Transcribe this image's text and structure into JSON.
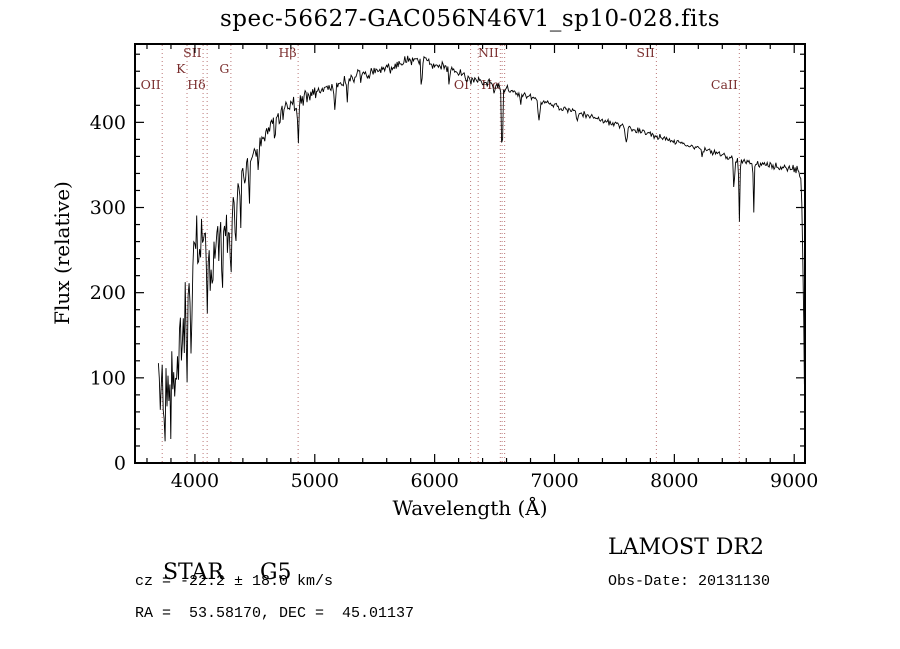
{
  "chart_data": {
    "type": "line",
    "title": "spec-56627-GAC056N46V1_sp10-028.fits",
    "xlabel": "Wavelength (Å)",
    "ylabel": "Flux (relative)",
    "xlim": [
      3500,
      9090
    ],
    "ylim": [
      0,
      492
    ],
    "x_ticks": [
      4000,
      5000,
      6000,
      7000,
      8000,
      9000
    ],
    "y_ticks": [
      0,
      100,
      200,
      300,
      400
    ],
    "x_major_step": 1000,
    "x_minor_step": 200,
    "y_major_step": 100,
    "y_minor_step": 20,
    "grid": false,
    "legend": "none",
    "line_color": "#000000",
    "marker_line_color": "#bb7777",
    "marker_label_color": "#7a2e2e",
    "seed": 42,
    "sample_step": 8,
    "wl_start": 3695,
    "wl_end": 9085,
    "series": [
      {
        "name": "spectrum",
        "continuum": [
          [
            3695,
            115
          ],
          [
            3720,
            125
          ],
          [
            3745,
            120
          ],
          [
            3770,
            135
          ],
          [
            3800,
            125
          ],
          [
            3830,
            140
          ],
          [
            3860,
            150
          ],
          [
            3900,
            185
          ],
          [
            3930,
            195
          ],
          [
            3960,
            205
          ],
          [
            3990,
            255
          ],
          [
            4020,
            265
          ],
          [
            4060,
            268
          ],
          [
            4100,
            265
          ],
          [
            4140,
            245
          ],
          [
            4180,
            255
          ],
          [
            4220,
            268
          ],
          [
            4260,
            285
          ],
          [
            4300,
            310
          ],
          [
            4340,
            325
          ],
          [
            4380,
            335
          ],
          [
            4420,
            345
          ],
          [
            4460,
            352
          ],
          [
            4500,
            360
          ],
          [
            4560,
            375
          ],
          [
            4620,
            392
          ],
          [
            4680,
            405
          ],
          [
            4740,
            415
          ],
          [
            4800,
            422
          ],
          [
            4861,
            424
          ],
          [
            4920,
            430
          ],
          [
            4980,
            434
          ],
          [
            5050,
            438
          ],
          [
            5150,
            443
          ],
          [
            5250,
            448
          ],
          [
            5350,
            452
          ],
          [
            5450,
            457
          ],
          [
            5550,
            461
          ],
          [
            5650,
            466
          ],
          [
            5750,
            470
          ],
          [
            5850,
            473
          ],
          [
            5950,
            472
          ],
          [
            6050,
            466
          ],
          [
            6150,
            460
          ],
          [
            6250,
            455
          ],
          [
            6350,
            450
          ],
          [
            6450,
            446
          ],
          [
            6563,
            441
          ],
          [
            6650,
            436
          ],
          [
            6750,
            431
          ],
          [
            6850,
            427
          ],
          [
            6950,
            422
          ],
          [
            7050,
            417
          ],
          [
            7150,
            413
          ],
          [
            7250,
            409
          ],
          [
            7350,
            405
          ],
          [
            7450,
            400
          ],
          [
            7550,
            396
          ],
          [
            7650,
            392
          ],
          [
            7750,
            388
          ],
          [
            7850,
            384
          ],
          [
            7950,
            380
          ],
          [
            8050,
            376
          ],
          [
            8150,
            372
          ],
          [
            8250,
            368
          ],
          [
            8350,
            364
          ],
          [
            8450,
            360
          ],
          [
            8550,
            355
          ],
          [
            8650,
            352
          ],
          [
            8750,
            350
          ],
          [
            8850,
            348
          ],
          [
            8950,
            346
          ],
          [
            9040,
            344
          ],
          [
            9060,
            330
          ],
          [
            9075,
            220
          ],
          [
            9085,
            95
          ]
        ],
        "noise_halfwidth": [
          [
            3695,
            50
          ],
          [
            3850,
            48
          ],
          [
            3950,
            40
          ],
          [
            4050,
            34
          ],
          [
            4150,
            30
          ],
          [
            4300,
            22
          ],
          [
            4500,
            16
          ],
          [
            4700,
            13
          ],
          [
            4900,
            11
          ],
          [
            5200,
            10
          ],
          [
            5600,
            9
          ],
          [
            6000,
            8
          ],
          [
            6300,
            7
          ],
          [
            6600,
            5.5
          ],
          [
            7000,
            4.5
          ],
          [
            7500,
            4
          ],
          [
            8200,
            4
          ],
          [
            8800,
            4.5
          ],
          [
            9085,
            6
          ]
        ],
        "absorption_features": [
          [
            3712,
            55,
            5
          ],
          [
            3737,
            75,
            5
          ],
          [
            3752,
            70,
            4
          ],
          [
            3772,
            60,
            4
          ],
          [
            3798,
            75,
            5
          ],
          [
            3820,
            55,
            4
          ],
          [
            3835,
            85,
            5
          ],
          [
            3860,
            60,
            4
          ],
          [
            3889,
            85,
            5
          ],
          [
            3910,
            50,
            4
          ],
          [
            3934,
            95,
            6
          ],
          [
            3969,
            90,
            6
          ],
          [
            4026,
            45,
            4
          ],
          [
            4102,
            75,
            6
          ],
          [
            4144,
            55,
            5
          ],
          [
            4227,
            85,
            5
          ],
          [
            4272,
            55,
            4
          ],
          [
            4300,
            95,
            7
          ],
          [
            4340,
            80,
            5
          ],
          [
            4383,
            65,
            4
          ],
          [
            4455,
            40,
            4
          ],
          [
            4530,
            35,
            4
          ],
          [
            4668,
            30,
            4
          ],
          [
            4861,
            55,
            5
          ],
          [
            5170,
            30,
            6
          ],
          [
            5270,
            22,
            5
          ],
          [
            5890,
            32,
            5
          ],
          [
            6122,
            15,
            4
          ],
          [
            6300,
            12,
            4
          ],
          [
            6495,
            15,
            4
          ],
          [
            6563,
            85,
            5
          ],
          [
            6717,
            12,
            4
          ],
          [
            6870,
            22,
            7
          ],
          [
            7190,
            12,
            6
          ],
          [
            7600,
            20,
            8
          ],
          [
            8230,
            12,
            5
          ],
          [
            8498,
            45,
            4
          ],
          [
            8542,
            75,
            4
          ],
          [
            8662,
            60,
            4
          ]
        ]
      }
    ],
    "spectral_lines": [
      {
        "label": "OII",
        "wavelength": 3727,
        "row": 3
      },
      {
        "label": "K",
        "wavelength": 3934,
        "row": 2
      },
      {
        "label": "SII",
        "wavelength": 4068,
        "row": 1
      },
      {
        "label": "Hδ",
        "wavelength": 4102,
        "row": 3
      },
      {
        "label": "G",
        "wavelength": 4300,
        "row": 2
      },
      {
        "label": "Hβ",
        "wavelength": 4861,
        "row": 1
      },
      {
        "label": "OI",
        "wavelength": 6300,
        "row": 3
      },
      {
        "label": "",
        "wavelength": 6363,
        "row": 0
      },
      {
        "label": "NII",
        "wavelength": 6548,
        "row": 1
      },
      {
        "label": "Hα",
        "wavelength": 6563,
        "row": 3
      },
      {
        "label": "",
        "wavelength": 6584,
        "row": 0
      },
      {
        "label": "SII",
        "wavelength": 7850,
        "row": 1
      },
      {
        "label": "CaII",
        "wavelength": 8542,
        "row": 3
      }
    ]
  },
  "footer": {
    "object_class": "STAR",
    "subclass": "G5",
    "survey": "LAMOST DR2",
    "velocity": "cz = -22.2 ± 18.0 km/s",
    "obs_date": "Obs-Date: 20131130",
    "coordinates": "RA =  53.58170, DEC =  45.01137"
  }
}
